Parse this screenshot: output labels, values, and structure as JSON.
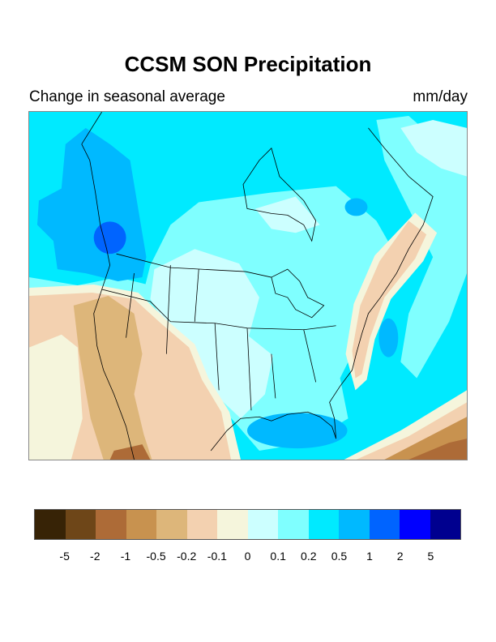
{
  "title": "CCSM SON Precipitation",
  "subtitle": "Change in seasonal average",
  "units": "mm/day",
  "colorbar": {
    "colors": [
      "#372306",
      "#6e4618",
      "#ad6b37",
      "#c8924f",
      "#ddb67a",
      "#f3d1b0",
      "#f5f5dc",
      "#ccffff",
      "#7fffff",
      "#00eaff",
      "#00b9ff",
      "#0064ff",
      "#0000ff",
      "#00008f"
    ],
    "labels": [
      "-5",
      "-2",
      "-1",
      "-0.5",
      "-0.2",
      "-0.1",
      "0",
      "0.1",
      "0.2",
      "0.5",
      "1",
      "2",
      "5"
    ]
  },
  "map": {
    "region": "North America",
    "base_color": "#00eaff"
  }
}
